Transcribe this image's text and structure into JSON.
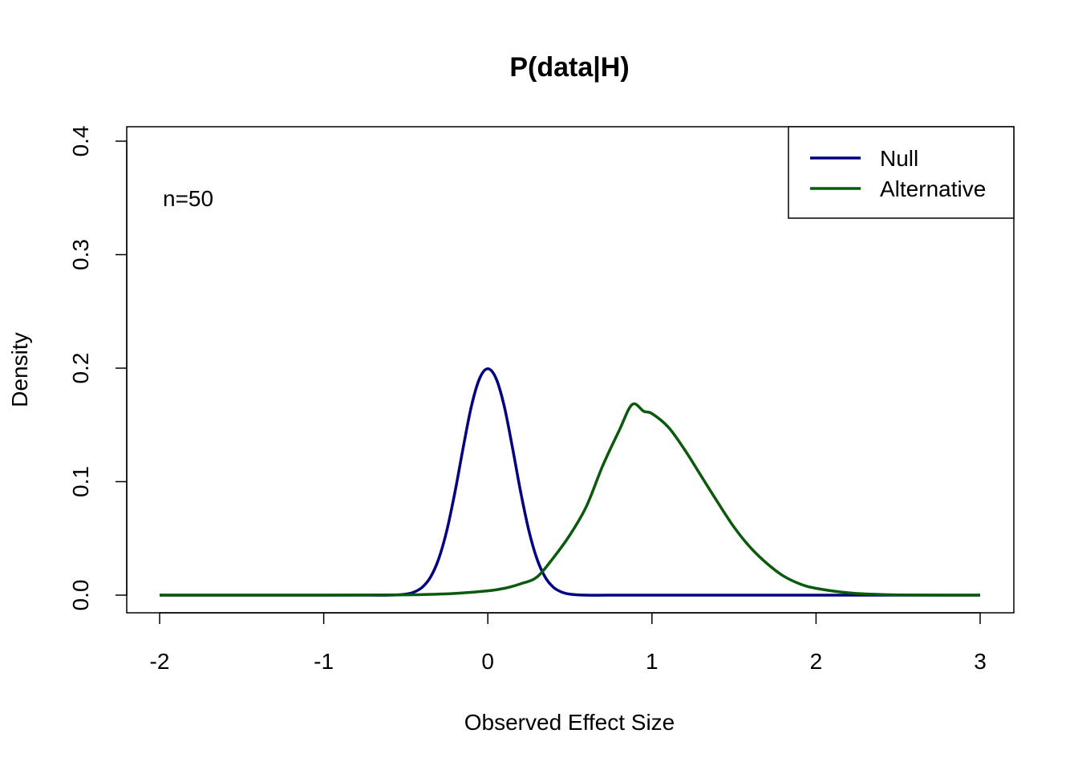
{
  "chart_data": {
    "type": "line",
    "title": "P(data|H)",
    "xlabel": "Observed Effect Size",
    "ylabel": "Density",
    "xlim": [
      -2,
      3
    ],
    "ylim": [
      0,
      0.4
    ],
    "x_ticks": [
      -2,
      -1,
      0,
      1,
      2,
      3
    ],
    "x_tick_labels": [
      "-2",
      "-1",
      "0",
      "1",
      "2",
      "3"
    ],
    "y_ticks": [
      0,
      0.1,
      0.2,
      0.3,
      0.4
    ],
    "y_tick_labels": [
      "0.0",
      "0.1",
      "0.2",
      "0.3",
      "0.4"
    ],
    "grid": false,
    "legend_position": "top-right",
    "annotation": "n=50",
    "series": [
      {
        "name": "Null",
        "color": "#000080",
        "x": [
          -2,
          -1.5,
          -1,
          -0.8,
          -0.6,
          -0.5,
          -0.45,
          -0.4,
          -0.35,
          -0.3,
          -0.25,
          -0.2,
          -0.15,
          -0.1,
          -0.05,
          0,
          0.05,
          0.1,
          0.15,
          0.2,
          0.25,
          0.3,
          0.35,
          0.4,
          0.45,
          0.5,
          0.6,
          0.8,
          1,
          1.5,
          2,
          2.5,
          3
        ],
        "values": [
          0,
          0,
          0,
          0,
          0,
          0.0009,
          0.0027,
          0.0069,
          0.0157,
          0.0317,
          0.0569,
          0.091,
          0.1301,
          0.1665,
          0.191,
          0.1995,
          0.191,
          0.1665,
          0.1301,
          0.091,
          0.0569,
          0.0317,
          0.0157,
          0.0069,
          0.0027,
          0.0009,
          0,
          0,
          0,
          0,
          0,
          0,
          0
        ]
      },
      {
        "name": "Alternative",
        "color": "#0b5a0b",
        "x": [
          -2,
          -1.5,
          -1,
          -0.5,
          -0.4,
          -0.2,
          0,
          0.1,
          0.2,
          0.3,
          0.4,
          0.5,
          0.6,
          0.7,
          0.8,
          0.88,
          0.95,
          1,
          1.1,
          1.2,
          1.3,
          1.4,
          1.5,
          1.6,
          1.7,
          1.8,
          1.9,
          2,
          2.2,
          2.4,
          2.6,
          3
        ],
        "values": [
          0,
          0,
          0,
          0.0003,
          0.0005,
          0.0015,
          0.0038,
          0.006,
          0.01,
          0.016,
          0.033,
          0.053,
          0.078,
          0.114,
          0.145,
          0.168,
          0.162,
          0.16,
          0.148,
          0.128,
          0.105,
          0.082,
          0.06,
          0.042,
          0.028,
          0.017,
          0.01,
          0.006,
          0.002,
          0.0005,
          0.0001,
          0
        ]
      }
    ]
  }
}
